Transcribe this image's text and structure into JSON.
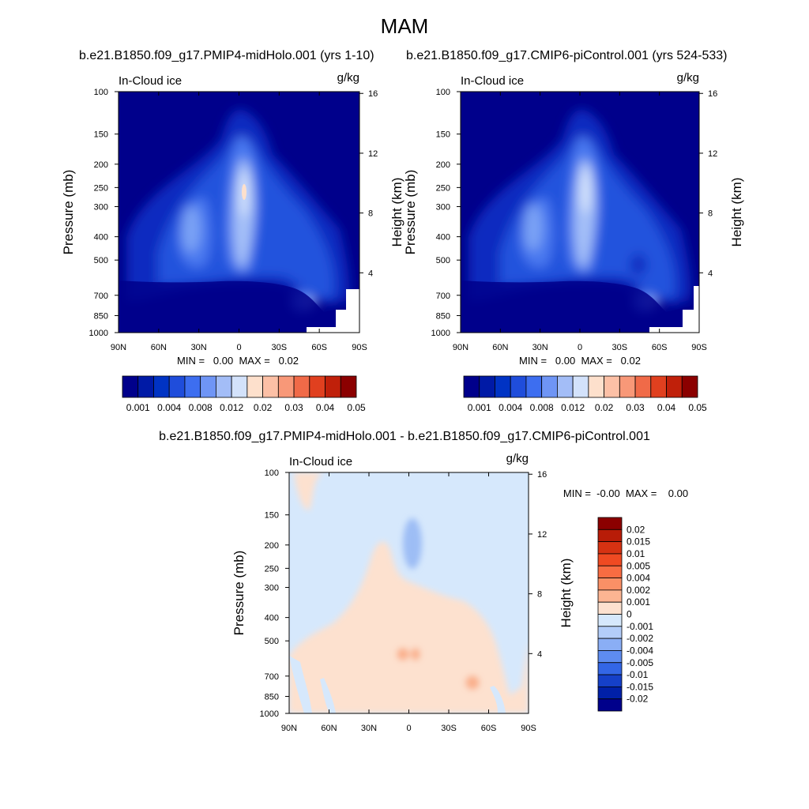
{
  "figure": {
    "title": "MAM",
    "colors": {
      "background": "#ffffff",
      "frame": "#000000"
    }
  },
  "chart_data": [
    {
      "type": "heatmap",
      "panel": "top-left",
      "title": "b.e21.B1850.f09_g17.PMIP4-midHolo.001 (yrs 1-10)",
      "left_string": "In-Cloud ice",
      "right_string": "g/kg",
      "xlabel": "",
      "ylabel": "Pressure (mb)",
      "ylabel_right": "Height (km)",
      "x_ticks": [
        "90N",
        "60N",
        "30N",
        "0",
        "30S",
        "60S",
        "90S"
      ],
      "y_ticks": [
        "100",
        "150",
        "200",
        "250",
        "300",
        "400",
        "500",
        "700",
        "850",
        "1000"
      ],
      "y_right_ticks": [
        "16",
        "12",
        "8",
        "4"
      ],
      "stats": "MIN =   0.00  MAX =   0.02",
      "colorbar_labels": [
        "0.001",
        "0.004",
        "0.008",
        "0.012",
        "0.02",
        "0.03",
        "0.04",
        "0.05"
      ],
      "colorbar_orientation": "horizontal",
      "colorbar_colors": [
        "#00008b",
        "#001aa6",
        "#0033c4",
        "#1f4ddb",
        "#3d6ef0",
        "#6f95f5",
        "#a3bdf7",
        "#d3e2fb",
        "#fde0cc",
        "#fcc0a6",
        "#f89878",
        "#f06a48",
        "#e0401f",
        "#c0200a",
        "#8b0000"
      ],
      "features": [
        {
          "name": "tropical-ice-maximum",
          "lat": 0,
          "pressure": 250,
          "value": 0.02
        },
        {
          "name": "nh-subtropical-band",
          "lat": 35,
          "pressure": 350,
          "value": 0.012
        },
        {
          "name": "sh-lowlevel-maximum",
          "lat": -55,
          "pressure": 750,
          "value": 0.012
        }
      ]
    },
    {
      "type": "heatmap",
      "panel": "top-right",
      "title": "b.e21.B1850.f09_g17.CMIP6-piControl.001 (yrs 524-533)",
      "left_string": "In-Cloud ice",
      "right_string": "g/kg",
      "xlabel": "",
      "ylabel": "Pressure (mb)",
      "ylabel_right": "Height (km)",
      "x_ticks": [
        "90N",
        "60N",
        "30N",
        "0",
        "30S",
        "60S",
        "90S"
      ],
      "y_ticks": [
        "100",
        "150",
        "200",
        "250",
        "300",
        "400",
        "500",
        "700",
        "850",
        "1000"
      ],
      "y_right_ticks": [
        "16",
        "12",
        "8",
        "4"
      ],
      "stats": "MIN =   0.00  MAX =   0.02",
      "colorbar_labels": [
        "0.001",
        "0.004",
        "0.008",
        "0.012",
        "0.02",
        "0.03",
        "0.04",
        "0.05"
      ],
      "colorbar_orientation": "horizontal",
      "colorbar_colors": [
        "#00008b",
        "#001aa6",
        "#0033c4",
        "#1f4ddb",
        "#3d6ef0",
        "#6f95f5",
        "#a3bdf7",
        "#d3e2fb",
        "#fde0cc",
        "#fcc0a6",
        "#f89878",
        "#f06a48",
        "#e0401f",
        "#c0200a",
        "#8b0000"
      ],
      "features": [
        {
          "name": "tropical-ice-maximum",
          "lat": 0,
          "pressure": 250,
          "value": 0.02
        },
        {
          "name": "nh-subtropical-band",
          "lat": 35,
          "pressure": 350,
          "value": 0.012
        },
        {
          "name": "sh-lowlevel-maximum",
          "lat": -55,
          "pressure": 750,
          "value": 0.012
        }
      ]
    },
    {
      "type": "heatmap",
      "panel": "bottom-difference",
      "title": "b.e21.B1850.f09_g17.PMIP4-midHolo.001 - b.e21.B1850.f09_g17.CMIP6-piControl.001",
      "left_string": "In-Cloud ice",
      "right_string": "g/kg",
      "xlabel": "",
      "ylabel": "Pressure (mb)",
      "ylabel_right": "Height (km)",
      "x_ticks": [
        "90N",
        "60N",
        "30N",
        "0",
        "30S",
        "60S",
        "90S"
      ],
      "y_ticks": [
        "100",
        "150",
        "200",
        "250",
        "300",
        "400",
        "500",
        "700",
        "850",
        "1000"
      ],
      "y_right_ticks": [
        "16",
        "12",
        "8",
        "4"
      ],
      "stats": "MIN =  -0.00  MAX =    0.00",
      "colorbar_labels": [
        "0.02",
        "0.015",
        "0.01",
        "0.005",
        "0.004",
        "0.002",
        "0.001",
        "0",
        "-0.001",
        "-0.002",
        "-0.004",
        "-0.005",
        "-0.01",
        "-0.015",
        "-0.02"
      ],
      "colorbar_orientation": "vertical",
      "colorbar_colors": [
        "#8b0000",
        "#b81c08",
        "#d63212",
        "#ef4a22",
        "#f86c42",
        "#fa9066",
        "#fcb592",
        "#fde1cf",
        "#d6e8fc",
        "#b3cdf9",
        "#8aaef5",
        "#5e8cf0",
        "#3366e6",
        "#1540c9",
        "#0020a8",
        "#00008b"
      ],
      "features": [
        {
          "name": "upper-negative-anomaly",
          "lat": 0,
          "pressure": 200,
          "value": -0.002
        },
        {
          "name": "midlevel-positive-anomaly",
          "lat": 5,
          "pressure": 550,
          "value": 0.001
        },
        {
          "name": "sh-positive-anomaly",
          "lat": -45,
          "pressure": 700,
          "value": 0.001
        }
      ]
    }
  ]
}
